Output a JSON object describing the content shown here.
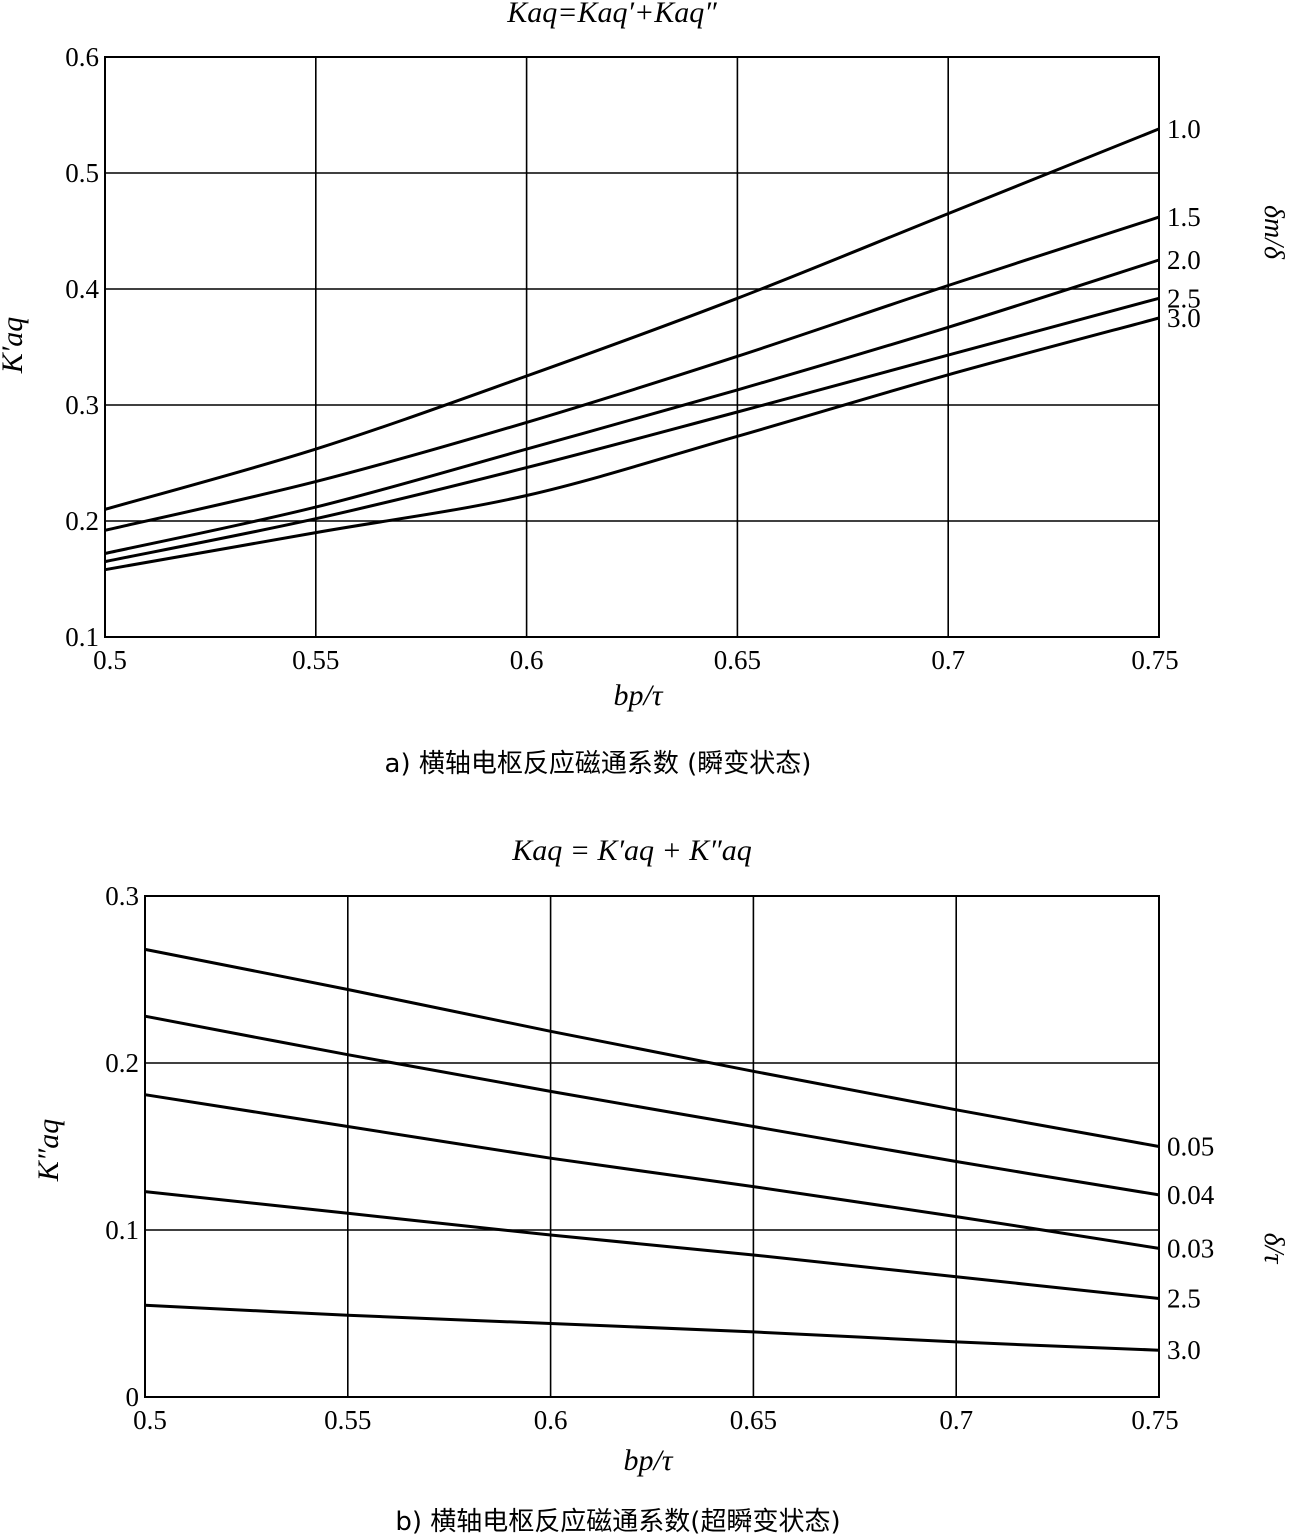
{
  "chart_data": [
    {
      "id": "a",
      "type": "line",
      "formula": "Kaq=Kaq′+Kaq″",
      "caption": "a) 横轴电枢反应磁通系数 (瞬变状态)",
      "xlabel": "bp/τ",
      "ylabel": "K′aq",
      "param_label": "δm/δ",
      "xlim": [
        0.5,
        0.75
      ],
      "ylim": [
        0.1,
        0.6
      ],
      "x_ticks": [
        "0.5",
        "0.55",
        "0.6",
        "0.65",
        "0.7",
        "0.75"
      ],
      "y_ticks": [
        "0.1",
        "0.2",
        "0.3",
        "0.4",
        "0.5",
        "0.6"
      ],
      "grid": true,
      "legend_position": "right-end labels",
      "x": [
        0.5,
        0.55,
        0.6,
        0.65,
        0.7,
        0.75
      ],
      "series": [
        {
          "label": "1.0",
          "values": [
            0.21,
            0.262,
            0.325,
            0.392,
            0.465,
            0.538
          ]
        },
        {
          "label": "1.5",
          "values": [
            0.192,
            0.234,
            0.285,
            0.342,
            0.403,
            0.462
          ]
        },
        {
          "label": "2.0",
          "values": [
            0.172,
            0.212,
            0.262,
            0.313,
            0.367,
            0.425
          ]
        },
        {
          "label": "2.5",
          "values": [
            0.165,
            0.202,
            0.246,
            0.294,
            0.343,
            0.392
          ]
        },
        {
          "label": "3.0",
          "values": [
            0.158,
            0.19,
            0.222,
            0.273,
            0.326,
            0.375
          ]
        }
      ]
    },
    {
      "id": "b",
      "type": "line",
      "formula": "Kaq = K′aq + K″aq",
      "caption": "b) 横轴电枢反应磁通系数(超瞬变状态)",
      "xlabel": "bp/τ",
      "ylabel": "K″aq",
      "param_label": "δ/τ",
      "xlim": [
        0.5,
        0.75
      ],
      "ylim": [
        0,
        0.3
      ],
      "x_ticks": [
        "0.5",
        "0.55",
        "0.6",
        "0.65",
        "0.7",
        "0.75"
      ],
      "y_ticks": [
        "0",
        "0.1",
        "0.2",
        "0.3"
      ],
      "grid": true,
      "legend_position": "right-end labels",
      "x": [
        0.5,
        0.55,
        0.6,
        0.65,
        0.7,
        0.75
      ],
      "series": [
        {
          "label": "0.05",
          "values": [
            0.268,
            0.244,
            0.219,
            0.195,
            0.172,
            0.15
          ]
        },
        {
          "label": "0.04",
          "values": [
            0.228,
            0.205,
            0.183,
            0.162,
            0.141,
            0.121
          ]
        },
        {
          "label": "0.03",
          "values": [
            0.181,
            0.162,
            0.143,
            0.126,
            0.108,
            0.089
          ]
        },
        {
          "label": "2.5",
          "values": [
            0.123,
            0.11,
            0.097,
            0.085,
            0.072,
            0.059
          ]
        },
        {
          "label": "3.0",
          "values": [
            0.055,
            0.049,
            0.044,
            0.039,
            0.033,
            0.028
          ]
        }
      ]
    }
  ]
}
